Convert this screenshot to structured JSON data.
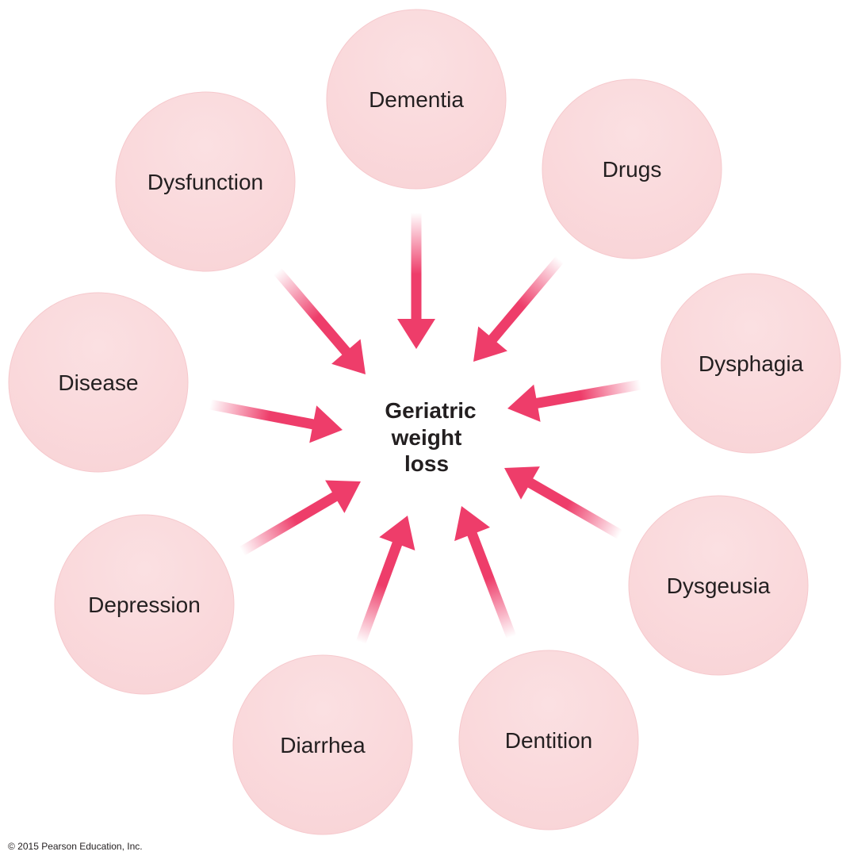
{
  "center": {
    "lines": [
      "Geriatric",
      "weight",
      "loss"
    ]
  },
  "nodes": [
    {
      "label": "Dementia"
    },
    {
      "label": "Drugs"
    },
    {
      "label": "Dysphagia"
    },
    {
      "label": "Dysgeusia"
    },
    {
      "label": "Dentition"
    },
    {
      "label": "Diarrhea"
    },
    {
      "label": "Depression"
    },
    {
      "label": "Disease"
    },
    {
      "label": "Dysfunction"
    }
  ],
  "colors": {
    "circle_fill": "#f9d5d8",
    "circle_highlight": "#fdeff0",
    "arrow": "#ee3d6a",
    "text": "#231f20"
  },
  "copyright": "© 2015 Pearson Education, Inc."
}
